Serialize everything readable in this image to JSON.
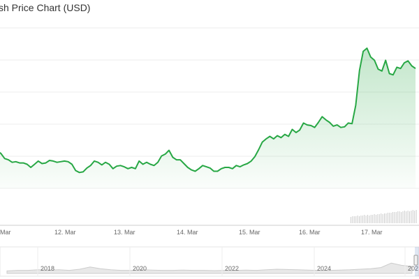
{
  "title": "sh Price Chart (USD)",
  "chart_data": {
    "type": "area",
    "title": "sh Price Chart (USD)",
    "x_tick_labels": [
      "Mar",
      "12. Mar",
      "13. Mar",
      "14. Mar",
      "15. Mar",
      "16. Mar",
      "17. Mar"
    ],
    "grid": true,
    "legend": "none",
    "colors": {
      "line": "#27a744",
      "fill": "#e6f5e9",
      "volume": "#cccccc",
      "grid": "#eeeeee"
    },
    "series": [
      {
        "values": [
          48,
          44,
          36,
          34,
          30,
          31,
          29,
          29,
          27,
          22,
          27,
          32,
          28,
          29,
          33,
          32,
          30,
          31,
          32,
          31,
          27,
          17,
          14,
          15,
          21,
          25,
          32,
          30,
          26,
          30,
          27,
          20,
          24,
          25,
          23,
          20,
          22,
          20,
          32,
          27,
          30,
          27,
          25,
          30,
          40,
          43,
          49,
          38,
          34,
          34,
          28,
          22,
          18,
          16,
          20,
          25,
          23,
          21,
          16,
          16,
          20,
          22,
          22,
          20,
          25,
          23,
          26,
          28,
          32,
          39,
          50,
          62,
          67,
          71,
          67,
          72,
          69,
          74,
          71,
          82,
          77,
          81,
          92,
          89,
          88,
          85,
          93,
          102,
          97,
          93,
          87,
          89,
          85,
          86,
          92,
          91,
          120,
          175,
          205,
          210,
          196,
          191,
          177,
          174,
          191,
          170,
          168,
          180,
          178,
          187,
          190,
          182,
          178
        ]
      }
    ],
    "volume": [
      9,
      10,
      10,
      10,
      11,
      10,
      11,
      11,
      12,
      11,
      12,
      11,
      12,
      12,
      13,
      12,
      13,
      13,
      14,
      13,
      14,
      14,
      15,
      15,
      15,
      16,
      16,
      16,
      17,
      17,
      16,
      17,
      18,
      17,
      18,
      17,
      18,
      19,
      18,
      19
    ],
    "navigator_tick_labels": [
      "2018",
      "2020",
      "2022",
      "2024",
      "202"
    ],
    "navigator_values": [
      0.2,
      0.3,
      0.3,
      0.4,
      0.35,
      0.4,
      0.3,
      0.5,
      0.9,
      0.6,
      0.4,
      0.3,
      0.3,
      0.4,
      0.35,
      0.3,
      0.3,
      0.35,
      0.3,
      0.3,
      0.25,
      0.3,
      0.3,
      0.35,
      0.3,
      0.4,
      0.5,
      0.45,
      0.4,
      0.35,
      0.3,
      0.3,
      0.35,
      0.4,
      0.5,
      0.6,
      0.8,
      1.6,
      1.2,
      1.0
    ]
  }
}
